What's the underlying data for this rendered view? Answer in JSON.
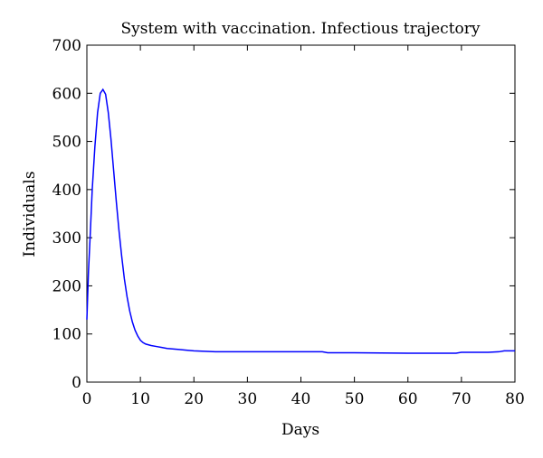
{
  "chart_data": {
    "type": "line",
    "title": "System with vaccination. Infectious trajectory",
    "xlabel": "Days",
    "ylabel": "Individuals",
    "xlim": [
      0,
      80
    ],
    "ylim": [
      0,
      700
    ],
    "xticks": [
      0,
      10,
      20,
      30,
      40,
      50,
      60,
      70,
      80
    ],
    "yticks": [
      0,
      100,
      200,
      300,
      400,
      500,
      600,
      700
    ],
    "grid": false,
    "line_color": "#0000ff",
    "series": [
      {
        "x": [
          0,
          0.3,
          0.6,
          1,
          1.5,
          2,
          2.5,
          3,
          3.5,
          4,
          4.5,
          5,
          5.5,
          6,
          6.5,
          7,
          7.5,
          8,
          8.5,
          9,
          9.5,
          10,
          10.5,
          11,
          12,
          13,
          14,
          15,
          17,
          19,
          20,
          24,
          30,
          40,
          44,
          45,
          50,
          60,
          69,
          70,
          75,
          77,
          78,
          80
        ],
        "y": [
          130,
          230,
          300,
          400,
          490,
          560,
          600,
          608,
          598,
          560,
          505,
          440,
          375,
          315,
          262,
          215,
          178,
          148,
          125,
          108,
          96,
          87,
          82,
          79,
          76,
          74,
          72,
          70,
          68,
          66,
          65,
          63,
          63,
          63,
          63,
          61,
          61,
          60,
          60,
          62,
          62,
          63,
          65,
          65
        ]
      }
    ]
  }
}
